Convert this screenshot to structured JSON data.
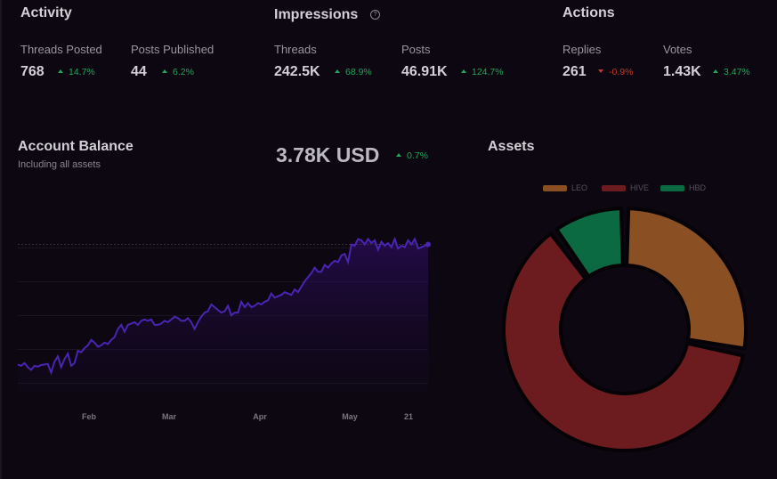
{
  "activity": {
    "title": "Activity",
    "threads_posted": {
      "label": "Threads Posted",
      "value": "768",
      "delta": "14.7%",
      "trend": "up"
    },
    "posts_published": {
      "label": "Posts Published",
      "value": "44",
      "delta": "6.2%",
      "trend": "up"
    }
  },
  "impressions": {
    "title": "Impressions",
    "help_icon": "?",
    "threads": {
      "label": "Threads",
      "value": "242.5K",
      "delta": "68.9%",
      "trend": "up"
    },
    "posts": {
      "label": "Posts",
      "value": "46.91K",
      "delta": "124.7%",
      "trend": "up"
    }
  },
  "actions": {
    "title": "Actions",
    "replies": {
      "label": "Replies",
      "value": "261",
      "delta": "-0.9%",
      "trend": "down"
    },
    "votes": {
      "label": "Votes",
      "value": "1.43K",
      "delta": "3.47%",
      "trend": "up"
    }
  },
  "account_balance": {
    "title": "Account Balance",
    "subtitle": "Including all assets",
    "total": "3.78K USD",
    "delta": "0.7%",
    "trend": "up"
  },
  "assets": {
    "title": "Assets"
  },
  "colors": {
    "positive": "#22a65a",
    "negative": "#c0392b",
    "line": "#4a24b4",
    "leo": "#8a4f23",
    "hive": "#6c1c1f",
    "hbd": "#0c6a42"
  },
  "chart_data": [
    {
      "type": "area",
      "title": "",
      "xlabel": "",
      "ylabel": "",
      "x_ticks": [
        "Feb",
        "Mar",
        "Apr",
        "May",
        "21"
      ],
      "grid": true,
      "series": [
        {
          "values": [
            1.0,
            0.95,
            1.05,
            0.9,
            0.8,
            0.95,
            0.92,
            0.98,
            1.0,
            1.02,
            0.7,
            1.1,
            1.3,
            0.9,
            1.2,
            1.4,
            0.95,
            1.05,
            1.5,
            1.45,
            1.6,
            1.7,
            1.9,
            1.8,
            1.65,
            1.7,
            1.8,
            1.75,
            1.9,
            2.0,
            2.3,
            2.45,
            2.2,
            2.45,
            2.5,
            2.55,
            2.45,
            2.6,
            2.65,
            2.6,
            2.65,
            2.45,
            2.45,
            2.5,
            2.6,
            2.55,
            2.65,
            2.75,
            2.7,
            2.6,
            2.6,
            2.7,
            2.55,
            2.3,
            2.55,
            2.75,
            2.9,
            2.95,
            3.2,
            3.1,
            3.0,
            2.9,
            2.95,
            3.15,
            2.8,
            2.9,
            2.9,
            3.3,
            3.1,
            3.25,
            3.1,
            3.15,
            3.25,
            3.2,
            3.3,
            3.35,
            3.6,
            3.45,
            3.5,
            3.55,
            3.65,
            3.6,
            3.55,
            3.75,
            3.65,
            3.85,
            4.05,
            4.2,
            4.35,
            4.55,
            4.4,
            4.4,
            4.65,
            4.55,
            4.7,
            4.8,
            4.75,
            5.0,
            5.05,
            4.75,
            5.4,
            5.35,
            5.6,
            5.55,
            5.4,
            5.6,
            5.45,
            5.55,
            5.2,
            5.5,
            5.35,
            5.45,
            5.3,
            5.6,
            5.25,
            5.35,
            5.3,
            5.55,
            5.4,
            5.6,
            5.25,
            5.3,
            5.35,
            5.4
          ],
          "reference_level": 5.4
        }
      ]
    },
    {
      "type": "pie",
      "title": "",
      "legend": "top",
      "categories": [
        "LEO",
        "HIVE",
        "HBD"
      ],
      "values": [
        28,
        62,
        10
      ]
    }
  ]
}
